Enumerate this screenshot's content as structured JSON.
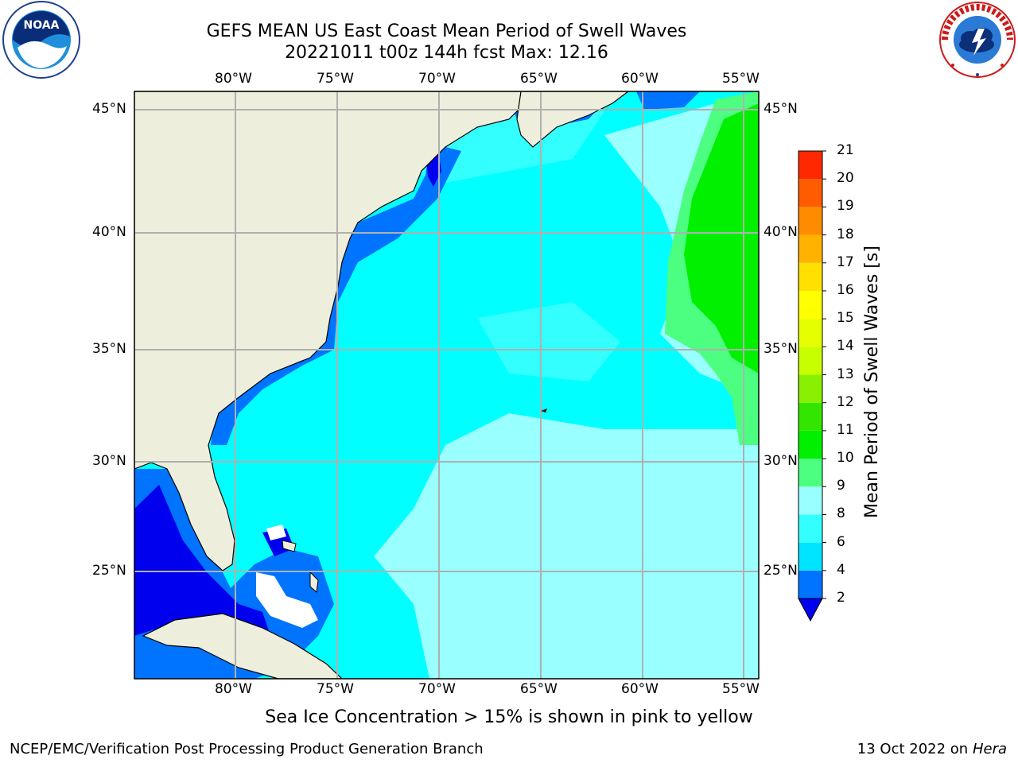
{
  "header": {
    "title_line1": "GEFS MEAN US East Coast Mean Period of Swell Waves",
    "title_line2": "20221011 t00z 144h fcst   Max: 12.16"
  },
  "logos": {
    "left": {
      "name": "NOAA",
      "ring_text": "NATIONAL OCEANIC AND ATMOSPHERIC ADMINISTRATION · U.S. DEPARTMENT OF COMMERCE"
    },
    "right": {
      "name": "NATIONAL WEATHER SERVICE"
    }
  },
  "map": {
    "lon_labels": [
      "80°W",
      "75°W",
      "70°W",
      "65°W",
      "60°W",
      "55°W"
    ],
    "lat_labels": [
      "45°N",
      "40°N",
      "35°N",
      "30°N",
      "25°N"
    ],
    "extent": {
      "lon": [
        -85,
        -54.5
      ],
      "lat": [
        20.5,
        46
      ]
    },
    "grid": true,
    "land_color": "#eeeedc",
    "ocean_default": "#00ffff"
  },
  "colorbar": {
    "label": "Mean Period of Swell Waves [s]",
    "ticks": [
      "2",
      "4",
      "6",
      "8",
      "9",
      "10",
      "11",
      "12",
      "13",
      "14",
      "15",
      "16",
      "17",
      "18",
      "19",
      "20",
      "21"
    ],
    "colors": [
      "#0073ff",
      "#00e5ff",
      "#33ffff",
      "#99ffff",
      "#4dff80",
      "#00f000",
      "#33e600",
      "#88f000",
      "#c8ff00",
      "#e6ff00",
      "#ffff00",
      "#ffe000",
      "#ffb300",
      "#ff8c00",
      "#ff5c00",
      "#ff2800"
    ],
    "under_color": "#0000ee"
  },
  "caption": "Sea Ice Concentration > 15% is shown in pink to yellow",
  "footer": {
    "left": "NCEP/EMC/Verification Post Processing Product Generation Branch",
    "right_prefix": "13 Oct 2022 on ",
    "right_host": "Hera"
  }
}
